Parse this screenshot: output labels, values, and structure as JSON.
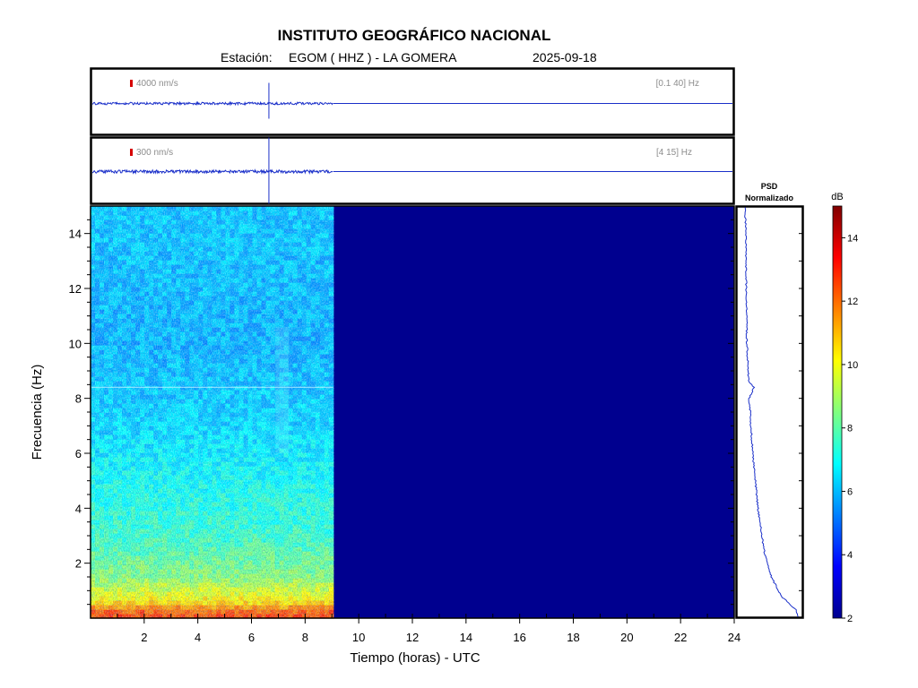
{
  "header": {
    "title": "INSTITUTO GEOGRÁFICO NACIONAL",
    "station_label": "Estación:",
    "station": "EGOM ( HHZ ) - LA GOMERA",
    "date": "2025-09-18"
  },
  "colors": {
    "trace": "#1a2fc9",
    "scale_marker": "#d60000",
    "no_data": "#00008f",
    "frame": "#000000"
  },
  "chart_data": [
    {
      "type": "line",
      "name": "trace-broadband",
      "scale_label": "4000 nm/s",
      "band_label": "[0.1 40] Hz",
      "data_end_hour": 9.05,
      "event_hour": 6.65,
      "xlim": [
        0,
        24
      ]
    },
    {
      "type": "line",
      "name": "trace-filtered",
      "scale_label": "300 nm/s",
      "band_label": "[4 15] Hz",
      "data_end_hour": 9.05,
      "event_hour": 6.65,
      "xlim": [
        0,
        24
      ]
    },
    {
      "type": "heatmap",
      "xlabel": "Tiempo (horas) - UTC",
      "ylabel": "Frecuencia  (Hz)",
      "xlim": [
        0,
        24
      ],
      "ylim": [
        0,
        15
      ],
      "xticks": [
        "2",
        "4",
        "6",
        "8",
        "10",
        "12",
        "14",
        "16",
        "18",
        "20",
        "22",
        "24"
      ],
      "yticks": [
        "2",
        "4",
        "6",
        "8",
        "10",
        "12",
        "14"
      ],
      "data_end_hour": 9.05,
      "colorbar": {
        "label": "dB",
        "range": [
          2,
          15
        ],
        "ticks": [
          "2",
          "4",
          "6",
          "8",
          "10",
          "12",
          "14"
        ]
      },
      "level_by_frequency": [
        {
          "hz": 0.2,
          "db": 12.5
        },
        {
          "hz": 0.6,
          "db": 10.5
        },
        {
          "hz": 1.5,
          "db": 8.6
        },
        {
          "hz": 3,
          "db": 7.6
        },
        {
          "hz": 5,
          "db": 7.0
        },
        {
          "hz": 7,
          "db": 6.4
        },
        {
          "hz": 10,
          "db": 5.9
        },
        {
          "hz": 15,
          "db": 6.2
        }
      ],
      "features": [
        {
          "type": "horizontal_line",
          "hz": 8.4
        },
        {
          "type": "vertical_band",
          "hour_from": 6.9,
          "hour_to": 7.4
        }
      ]
    },
    {
      "type": "line",
      "name": "psd-normalized",
      "title_line1": "PSD",
      "title_line2": "Normalizado",
      "ylim": [
        0,
        15
      ],
      "points": [
        {
          "hz": 0.05,
          "level": 0.99
        },
        {
          "hz": 0.3,
          "level": 0.95
        },
        {
          "hz": 0.8,
          "level": 0.7
        },
        {
          "hz": 1.5,
          "level": 0.53
        },
        {
          "hz": 2.5,
          "level": 0.4
        },
        {
          "hz": 4,
          "level": 0.3
        },
        {
          "hz": 6,
          "level": 0.21
        },
        {
          "hz": 8,
          "level": 0.15
        },
        {
          "hz": 8.4,
          "level": 0.23
        },
        {
          "hz": 8.6,
          "level": 0.14
        },
        {
          "hz": 10,
          "level": 0.11
        },
        {
          "hz": 12,
          "level": 0.1
        },
        {
          "hz": 14,
          "level": 0.09
        },
        {
          "hz": 15,
          "level": 0.08
        }
      ]
    }
  ]
}
